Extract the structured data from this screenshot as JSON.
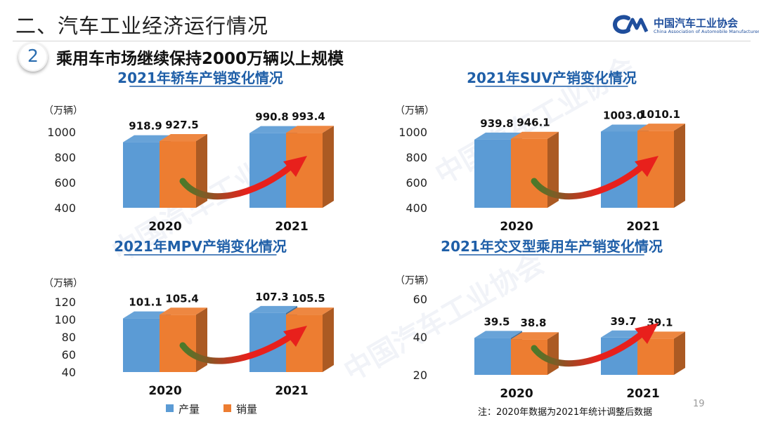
{
  "header": {
    "section_title": "二、汽车工业经济运行情况",
    "logo_cn": "中国汽车工业协会",
    "logo_en": "China Association of Automobile Manufacturers"
  },
  "subtitle": {
    "number": "2",
    "text": "乘用车市场继续保持2000万辆以上规模"
  },
  "legend": [
    {
      "label": "产量",
      "color": "#5b9bd5"
    },
    {
      "label": "销量",
      "color": "#ed7d31"
    }
  ],
  "footnote": "注：2020年数据为2021年统计调整后数据",
  "page_number": "19",
  "colors": {
    "production": "#5b9bd5",
    "sales": "#ed7d31",
    "title": "#1f5fa8",
    "arrow": "#e8201c"
  },
  "chart_data": [
    {
      "type": "bar",
      "title": "2021年轿车产销变化情况",
      "unit": "（万辆）",
      "categories": [
        "2020",
        "2021"
      ],
      "series": [
        {
          "name": "产量",
          "values": [
            918.9,
            990.8
          ]
        },
        {
          "name": "销量",
          "values": [
            927.5,
            993.4
          ]
        }
      ],
      "ylim": [
        400,
        1000
      ],
      "yticks": [
        400,
        600,
        800,
        1000
      ],
      "data_labels": [
        [
          "918.9",
          "990.8"
        ],
        [
          "927.5",
          "993.4"
        ]
      ],
      "grid": false
    },
    {
      "type": "bar",
      "title": "2021年SUV产销变化情况",
      "unit": "（万辆）",
      "categories": [
        "2020",
        "2021"
      ],
      "series": [
        {
          "name": "产量",
          "values": [
            939.8,
            1003.0
          ]
        },
        {
          "name": "销量",
          "values": [
            946.1,
            1010.1
          ]
        }
      ],
      "ylim": [
        400,
        1000
      ],
      "yticks": [
        400,
        600,
        800,
        1000
      ],
      "data_labels": [
        [
          "939.8",
          "1003.0"
        ],
        [
          "946.1",
          "1010.1"
        ]
      ],
      "grid": false
    },
    {
      "type": "bar",
      "title": "2021年MPV产销变化情况",
      "unit": "（万辆）",
      "categories": [
        "2020",
        "2021"
      ],
      "series": [
        {
          "name": "产量",
          "values": [
            101.1,
            107.3
          ]
        },
        {
          "name": "销量",
          "values": [
            105.4,
            105.5
          ]
        }
      ],
      "ylim": [
        40,
        120
      ],
      "yticks": [
        40,
        60,
        80,
        100,
        120
      ],
      "data_labels": [
        [
          "101.1",
          "107.3"
        ],
        [
          "105.4",
          "105.5"
        ]
      ],
      "grid": false
    },
    {
      "type": "bar",
      "title": "2021年交叉型乘用车产销变化情况",
      "unit": "（万辆）",
      "categories": [
        "2020",
        "2021"
      ],
      "series": [
        {
          "name": "产量",
          "values": [
            39.5,
            39.7
          ]
        },
        {
          "name": "销量",
          "values": [
            38.8,
            39.1
          ]
        }
      ],
      "ylim": [
        20,
        60
      ],
      "yticks": [
        20,
        40,
        60
      ],
      "data_labels": [
        [
          "39.5",
          "39.7"
        ],
        [
          "38.8",
          "39.1"
        ]
      ],
      "grid": false
    }
  ]
}
